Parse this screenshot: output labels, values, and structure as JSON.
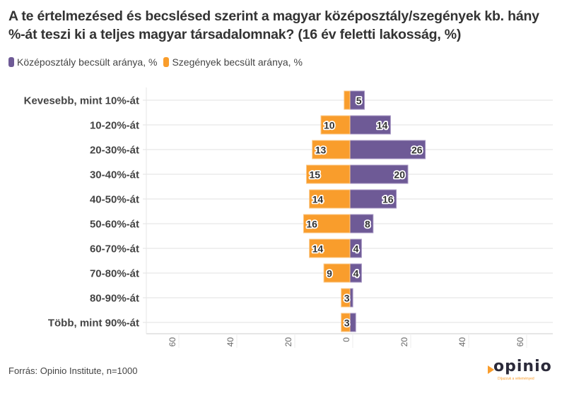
{
  "title": "A te értelmezésed és becslésed szerint a magyar középosztály/szegények kb. hány %-át teszi ki a teljes magyar társadalomnak? (16 év feletti lakosság, %)",
  "legend": [
    {
      "label": "Középosztály becsült aránya, %",
      "color": "#6E5A96"
    },
    {
      "label": "Szegények becsült aránya, %",
      "color": "#F99D2C"
    }
  ],
  "source": "Forrás: Opinio Institute, n=1000",
  "logo": {
    "name": "opinio",
    "tagline": "Díjazzuk a véleményed"
  },
  "chart_data": {
    "type": "bar",
    "orientation": "horizontal-diverging",
    "title": "A te értelmezésed és becslésed szerint a magyar középosztály/szegények kb. hány %-át teszi ki a teljes magyar társadalomnak? (16 év feletti lakosság, %)",
    "categories": [
      "Kevesebb, mint 10%-át",
      "10-20%-át",
      "20-30%-át",
      "30-40%-át",
      "40-50%-át",
      "50-60%-át",
      "60-70%-át",
      "70-80%-át",
      "80-90%-át",
      "Több, mint 90%-át"
    ],
    "series": [
      {
        "name": "Középosztály becsült aránya, %",
        "side": "right",
        "color": "#6E5A96",
        "values": [
          5,
          14,
          26,
          20,
          16,
          8,
          4,
          4,
          1,
          2
        ],
        "labels": [
          "5",
          "14",
          "26",
          "20",
          "16",
          "8",
          "4",
          "4",
          "",
          ""
        ]
      },
      {
        "name": "Szegények becsült aránya, %",
        "side": "left",
        "color": "#F99D2C",
        "values": [
          2,
          10,
          13,
          15,
          14,
          16,
          14,
          9,
          3,
          3
        ],
        "labels": [
          "",
          "10",
          "13",
          "15",
          "14",
          "16",
          "14",
          "9",
          "3",
          "3"
        ]
      }
    ],
    "xticks": [
      -60,
      -40,
      -20,
      0,
      20,
      40,
      60
    ],
    "xtick_labels": [
      "60",
      "40",
      "20",
      "0",
      "20",
      "40",
      "60"
    ],
    "xlim": [
      -70,
      70
    ],
    "xlabel": "",
    "ylabel": "",
    "grid": true,
    "legend_position": "top-left"
  }
}
